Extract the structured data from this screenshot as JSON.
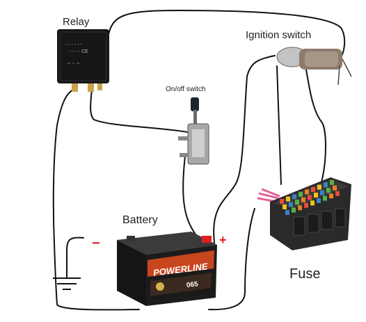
{
  "labels": {
    "relay": "Relay",
    "ignition_switch": "Ignition switch",
    "onoff_switch": "On/off switch",
    "battery": "Battery",
    "fuse": "Fuse",
    "minus": "−",
    "plus": "+"
  },
  "battery_label": {
    "brand": "POWERLINE",
    "code": "065"
  },
  "colors": {
    "wire": "#111111",
    "battery_case": "#1c1c1c",
    "battery_band": "#c8461e",
    "terminal_red": "#e02020",
    "relay_body": "#161616",
    "fuse_box": "#2a2a2a",
    "fuse_colors": [
      "#e84c3c",
      "#f2c21c",
      "#3b82c4",
      "#57b347",
      "#e87f24"
    ]
  }
}
